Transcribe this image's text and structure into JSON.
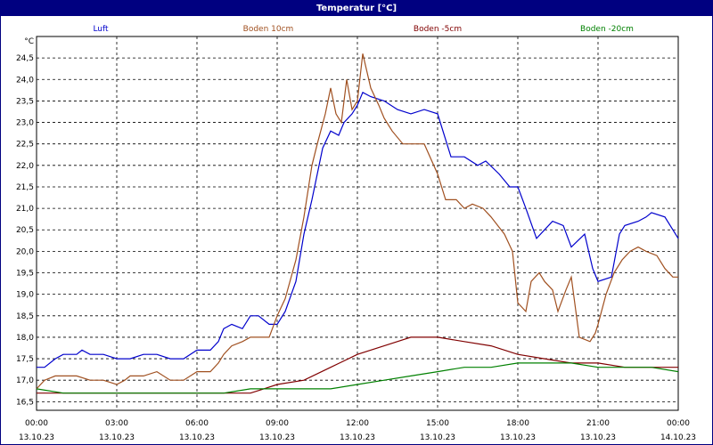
{
  "window": {
    "title": "Temperatur [°C]"
  },
  "chart_data": {
    "type": "line",
    "title": "Temperatur [°C]",
    "ylabel": "°C",
    "xlabel": "",
    "ylim": [
      16.3,
      25.0
    ],
    "xlim": [
      0,
      24
    ],
    "grid": true,
    "legend": "top",
    "y_ticks": [
      "16,5",
      "17,0",
      "17,5",
      "18,0",
      "18,5",
      "19,0",
      "19,5",
      "20,0",
      "20,5",
      "21,0",
      "21,5",
      "22,0",
      "22,5",
      "23,0",
      "23,5",
      "24,0",
      "24,5"
    ],
    "x_ticks": [
      {
        "time": "00:00",
        "date": "13.10.23"
      },
      {
        "time": "03:00",
        "date": "13.10.23"
      },
      {
        "time": "06:00",
        "date": "13.10.23"
      },
      {
        "time": "09:00",
        "date": "13.10.23"
      },
      {
        "time": "12:00",
        "date": "13.10.23"
      },
      {
        "time": "15:00",
        "date": "13.10.23"
      },
      {
        "time": "18:00",
        "date": "13.10.23"
      },
      {
        "time": "21:00",
        "date": "13.10.23"
      },
      {
        "time": "00:00",
        "date": "14.10.23"
      }
    ],
    "series": [
      {
        "name": "Luft",
        "color": "#0000cc",
        "x": [
          0,
          0.3,
          0.7,
          1.0,
          1.5,
          1.7,
          2.0,
          2.5,
          3.0,
          3.5,
          4.0,
          4.5,
          5.0,
          5.5,
          6.0,
          6.5,
          6.8,
          7.0,
          7.3,
          7.7,
          8.0,
          8.3,
          8.7,
          9.0,
          9.3,
          9.7,
          10.0,
          10.3,
          10.5,
          10.7,
          11.0,
          11.3,
          11.5,
          11.8,
          12.0,
          12.2,
          12.5,
          13.0,
          13.5,
          14.0,
          14.5,
          15.0,
          15.5,
          16.0,
          16.5,
          16.8,
          17.3,
          17.7,
          18.0,
          18.3,
          18.7,
          19.0,
          19.3,
          19.7,
          20.0,
          20.5,
          20.8,
          21.0,
          21.5,
          21.8,
          22.0,
          22.5,
          22.8,
          23.0,
          23.5,
          24.0
        ],
        "y": [
          17.3,
          17.3,
          17.5,
          17.6,
          17.6,
          17.7,
          17.6,
          17.6,
          17.5,
          17.5,
          17.6,
          17.6,
          17.5,
          17.5,
          17.7,
          17.7,
          17.9,
          18.2,
          18.3,
          18.2,
          18.5,
          18.5,
          18.3,
          18.3,
          18.6,
          19.3,
          20.4,
          21.2,
          21.8,
          22.4,
          22.8,
          22.7,
          23.0,
          23.2,
          23.4,
          23.7,
          23.6,
          23.5,
          23.3,
          23.2,
          23.3,
          23.2,
          22.2,
          22.2,
          22.0,
          22.1,
          21.8,
          21.5,
          21.5,
          21.0,
          20.3,
          20.5,
          20.7,
          20.6,
          20.1,
          20.4,
          19.6,
          19.3,
          19.4,
          20.4,
          20.6,
          20.7,
          20.8,
          20.9,
          20.8,
          20.3
        ]
      },
      {
        "name": "Boden 10cm",
        "color": "#a05020",
        "x": [
          0,
          0.3,
          0.7,
          1.0,
          1.5,
          2.0,
          2.5,
          3.0,
          3.3,
          3.5,
          4.0,
          4.5,
          5.0,
          5.5,
          6.0,
          6.5,
          6.8,
          7.0,
          7.3,
          7.7,
          8.0,
          8.3,
          8.7,
          9.0,
          9.3,
          9.7,
          10.0,
          10.3,
          10.5,
          10.8,
          11.0,
          11.2,
          11.4,
          11.6,
          11.8,
          12.0,
          12.2,
          12.5,
          12.8,
          13.0,
          13.3,
          13.7,
          14.0,
          14.5,
          15.0,
          15.3,
          15.7,
          16.0,
          16.3,
          16.7,
          17.0,
          17.5,
          17.8,
          18.0,
          18.3,
          18.5,
          18.8,
          19.0,
          19.3,
          19.5,
          19.8,
          20.0,
          20.3,
          20.7,
          20.9,
          21.0,
          21.3,
          21.6,
          21.9,
          22.2,
          22.5,
          22.8,
          23.2,
          23.5,
          23.8,
          24.0
        ],
        "y": [
          16.8,
          17.0,
          17.1,
          17.1,
          17.1,
          17.0,
          17.0,
          16.9,
          17.0,
          17.1,
          17.1,
          17.2,
          17.0,
          17.0,
          17.2,
          17.2,
          17.4,
          17.6,
          17.8,
          17.9,
          18.0,
          18.0,
          18.0,
          18.5,
          18.9,
          19.8,
          20.8,
          22.0,
          22.5,
          23.2,
          23.8,
          23.2,
          23.0,
          24.0,
          23.3,
          23.5,
          24.6,
          23.8,
          23.4,
          23.1,
          22.8,
          22.5,
          22.5,
          22.5,
          21.8,
          21.2,
          21.2,
          21.0,
          21.1,
          21.0,
          20.8,
          20.4,
          20.0,
          18.8,
          18.6,
          19.3,
          19.5,
          19.3,
          19.1,
          18.6,
          19.1,
          19.4,
          18.0,
          17.9,
          18.1,
          18.3,
          19.0,
          19.5,
          19.8,
          20.0,
          20.1,
          20.0,
          19.9,
          19.6,
          19.4,
          19.4
        ]
      },
      {
        "name": "Boden -5cm",
        "color": "#800000",
        "x": [
          0,
          1,
          2,
          3,
          4,
          5,
          6,
          7,
          8,
          8.5,
          9,
          10,
          11,
          12,
          13,
          14,
          15,
          16,
          17,
          18,
          19,
          20,
          21,
          22,
          23,
          24
        ],
        "y": [
          16.7,
          16.7,
          16.7,
          16.7,
          16.7,
          16.7,
          16.7,
          16.7,
          16.7,
          16.8,
          16.9,
          17.0,
          17.3,
          17.6,
          17.8,
          18.0,
          18.0,
          17.9,
          17.8,
          17.6,
          17.5,
          17.4,
          17.4,
          17.3,
          17.3,
          17.3
        ]
      },
      {
        "name": "Boden -20cm",
        "color": "#008000",
        "x": [
          0,
          1,
          2,
          3,
          4,
          5,
          6,
          7,
          8,
          9,
          10,
          11,
          12,
          13,
          14,
          15,
          16,
          17,
          18,
          19,
          20,
          21,
          22,
          23,
          24
        ],
        "y": [
          16.8,
          16.7,
          16.7,
          16.7,
          16.7,
          16.7,
          16.7,
          16.7,
          16.8,
          16.8,
          16.8,
          16.8,
          16.9,
          17.0,
          17.1,
          17.2,
          17.3,
          17.3,
          17.4,
          17.4,
          17.4,
          17.3,
          17.3,
          17.3,
          17.2
        ]
      }
    ]
  }
}
